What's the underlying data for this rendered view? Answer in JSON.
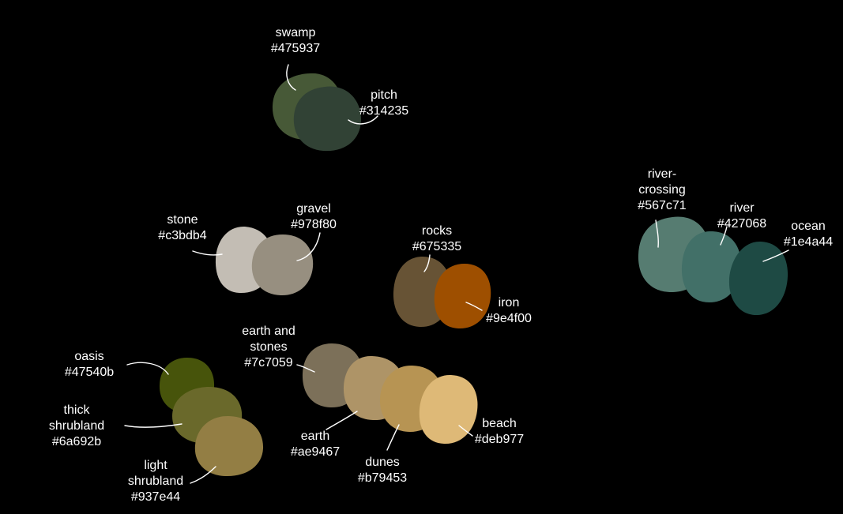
{
  "background": "#000000",
  "label_color": "#ffffff",
  "swatches": {
    "swamp": {
      "lines": [
        "swamp",
        "#475937"
      ],
      "color": "#475937"
    },
    "pitch": {
      "lines": [
        "pitch",
        "#314235"
      ],
      "color": "#314235"
    },
    "stone": {
      "lines": [
        "stone",
        "#c3bdb4"
      ],
      "color": "#c3bdb4"
    },
    "gravel": {
      "lines": [
        "gravel",
        "#978f80"
      ],
      "color": "#978f80"
    },
    "rocks": {
      "lines": [
        "rocks",
        "#675335"
      ],
      "color": "#675335"
    },
    "iron": {
      "lines": [
        "iron",
        "#9e4f00"
      ],
      "color": "#9e4f00"
    },
    "river_crossing": {
      "lines": [
        "river-",
        "crossing",
        "#567c71"
      ],
      "color": "#567c71"
    },
    "river": {
      "lines": [
        "river",
        "#427068"
      ],
      "color": "#427068"
    },
    "ocean": {
      "lines": [
        "ocean",
        "#1e4a44"
      ],
      "color": "#1e4a44"
    },
    "oasis": {
      "lines": [
        "oasis",
        "#47540b"
      ],
      "color": "#47540b"
    },
    "thick_shrubland": {
      "lines": [
        "thick",
        "shrubland",
        "#6a692b"
      ],
      "color": "#6a692b"
    },
    "light_shrubland": {
      "lines": [
        "light",
        "shrubland",
        "#937e44"
      ],
      "color": "#937e44"
    },
    "earth_and_stones": {
      "lines": [
        "earth and",
        "stones",
        "#7c7059"
      ],
      "color": "#7c7059"
    },
    "earth": {
      "lines": [
        "earth",
        "#ae9467"
      ],
      "color": "#ae9467"
    },
    "dunes": {
      "lines": [
        "dunes",
        "#b79453"
      ],
      "color": "#b79453"
    },
    "beach": {
      "lines": [
        "beach",
        "#deb977"
      ],
      "color": "#deb977"
    }
  }
}
